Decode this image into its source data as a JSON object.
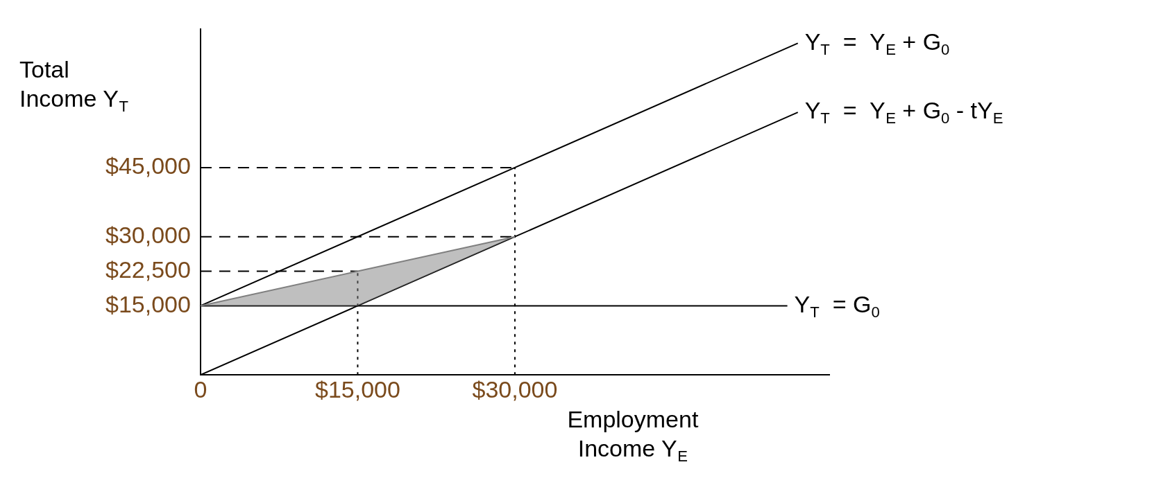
{
  "chart_data": {
    "type": "line",
    "xlabel": "Employment Income Y$_{E}$",
    "ylabel": "Total Income Y$_{T}$",
    "xlim": [
      0,
      60000
    ],
    "ylim": [
      0,
      75000
    ],
    "xticks": [
      {
        "value": 0,
        "label": "0"
      },
      {
        "value": 15000,
        "label": "$15,000"
      },
      {
        "value": 30000,
        "label": "$30,000"
      }
    ],
    "yticks": [
      {
        "value": 15000,
        "label": "$15,000"
      },
      {
        "value": 22500,
        "label": "$22,500"
      },
      {
        "value": 30000,
        "label": "$30,000"
      },
      {
        "value": 45000,
        "label": "$45,000"
      }
    ],
    "grid": false,
    "legend": false,
    "marker": "none",
    "series": [
      {
        "color": "#808080",
        "x": [
          0,
          15000,
          30000
        ],
        "values": [
          15000,
          22500,
          30000
        ],
        "lower": [
          15000,
          15000,
          30000
        ],
        "upper": [
          15000,
          22500,
          30000
        ],
        "line_style": "solid"
      },
      {
        "name": "Y$_{T}$  =  Y$_{E}$ + G$_{0}$",
        "color": "#000000",
        "x": [
          0,
          30000,
          57000
        ],
        "values": [
          15000,
          45000,
          72000
        ],
        "line_style": "solid"
      },
      {
        "name": "Y$_{T}$  =  Y$_{E}$ + G$_{0}$ - tY$_{E}$",
        "color": "#000000",
        "x": [
          0,
          15000,
          30000,
          57000
        ],
        "values": [
          0,
          15000,
          30000,
          57000
        ],
        "line_style": "solid"
      },
      {
        "name": "Y$_{T}$  = G$_{0}$",
        "color": "#000000",
        "x": [
          0,
          56000
        ],
        "values": [
          15000,
          15000
        ],
        "line_style": "solid"
      },
      {
        "color": "#000000",
        "x": [
          0,
          30000
        ],
        "values": [
          45000,
          45000
        ],
        "line_style": "dashed"
      },
      {
        "color": "#000000",
        "x": [
          0,
          30000
        ],
        "values": [
          30000,
          30000
        ],
        "line_style": "dashed"
      },
      {
        "color": "#000000",
        "x": [
          0,
          15000
        ],
        "values": [
          22500,
          22500
        ],
        "line_style": "dashed"
      },
      {
        "color": "#000000",
        "x": [
          15000,
          15000
        ],
        "values": [
          0,
          22500
        ],
        "line_style": "dotted"
      },
      {
        "color": "#000000",
        "x": [
          30000,
          30000
        ],
        "values": [
          0,
          45000
        ],
        "line_style": "dotted"
      }
    ]
  }
}
